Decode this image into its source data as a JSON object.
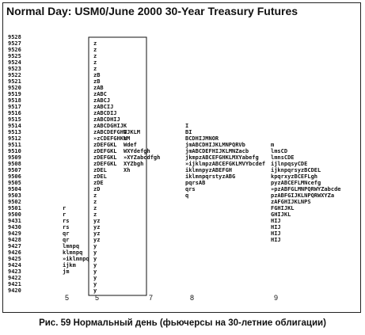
{
  "title": "Normal Day: USM0/June 2000 30-Year Treasury Futures",
  "caption": "Рис. 59 Нормальный день (фьючерсы на 30-летние облигации)",
  "chart_data": {
    "type": "table",
    "subtype": "market-profile",
    "prices": [
      "9528",
      "9527",
      "9526",
      "9525",
      "9524",
      "9523",
      "9522",
      "9521",
      "9520",
      "9519",
      "9518",
      "9517",
      "9516",
      "9515",
      "9514",
      "9513",
      "9512",
      "9511",
      "9510",
      "9509",
      "9508",
      "9507",
      "9506",
      "9505",
      "9504",
      "9503",
      "9502",
      "9501",
      "9500",
      "9431",
      "9430",
      "9429",
      "9428",
      "9427",
      "9426",
      "9425",
      "9424",
      "9423",
      "9422",
      "9421",
      "9420"
    ],
    "columns": [
      {
        "label": "5",
        "rows": {
          "9501": "r",
          "9500": "r",
          "9431": "rs",
          "9430": "rs",
          "9429": "qr",
          "9428": "qr",
          "9427": "lmnpq",
          "9426": "klmnpq",
          "9425": "»iklmnpq",
          "9424": "ijkm",
          "9423": "jm"
        }
      },
      {
        "label": "5",
        "boxed": true,
        "rows": {
          "9527": "z",
          "9526": "z",
          "9525": "z",
          "9524": "z",
          "9523": "z",
          "9522": "zB",
          "9521": "zB",
          "9520": "zAB",
          "9519": "zABC",
          "9518": "zABCJ",
          "9517": "zABCIJ",
          "9516": "zABCDIJ",
          "9515": "zABCDHIJ",
          "9514": "zABCDGHIJK",
          "9513": "zABCDEFGHIJKLM",
          "9512": "»zCDEFGHKLM",
          "9511": "zDEFGKL",
          "9510": "zDEFGKL",
          "9509": "zDEFGKL",
          "9508": "zDEFGKL",
          "9507": "zDEL",
          "9506": "zDEL",
          "9505": "zDE",
          "9504": "zD",
          "9503": "z",
          "9502": "z",
          "9501": "z",
          "9500": "z",
          "9431": "yz",
          "9430": "yz",
          "9429": "yz",
          "9428": "yz",
          "9427": "y",
          "9426": "y",
          "9425": "y",
          "9424": "y",
          "9423": "y",
          "9422": "y",
          "9421": "y",
          "9420": "y"
        }
      },
      {
        "label": "7",
        "rows": {
          "9513": "W",
          "9512": "W",
          "9511": "Wdef",
          "9510": "WXYdefgh",
          "9509": "»XYZabcdfgh",
          "9508": "XYZbgh",
          "9507": "Xh"
        }
      },
      {
        "label": "8",
        "rows": {
          "9514": "I",
          "9513": "BI",
          "9512": "BCDHIJMNOR",
          "9511": "jmABCDHIJKLMNPQRVb",
          "9510": "jmABCDEFHIJKLMNZacb",
          "9509": "jkmpzABCEFGHKLMXYabefg",
          "9508": "»ijklmpzABCEFGKLMVYbcdef",
          "9507": "iklmnpyzABEFGH",
          "9506": "iklmnpqrstyzABG",
          "9505": "pqrsAB",
          "9504": "qrs",
          "9503": "q"
        }
      },
      {
        "label": "9",
        "rows": {
          "9511": "m",
          "9510": "lmsCD",
          "9509": "lmnsCDE",
          "9508": "ijlnpqsyCDE",
          "9507": "ijknpqrsyzBCDEL",
          "9506": "kpqrxyzBCEFLgh",
          "9505": "pyzABCEFLMNcefg",
          "9504": "»pzABFGLMNPQRWYZabcde",
          "9503": "pzABFGIJKLNPQRWXYZa",
          "9502": "zAFGHIJKLNPS",
          "9501": "FGHIJKL",
          "9500": "GHIJKL",
          "9431": "HIJ",
          "9430": "HIJ",
          "9429": "HIJ",
          "9428": "HIJ"
        }
      }
    ]
  }
}
